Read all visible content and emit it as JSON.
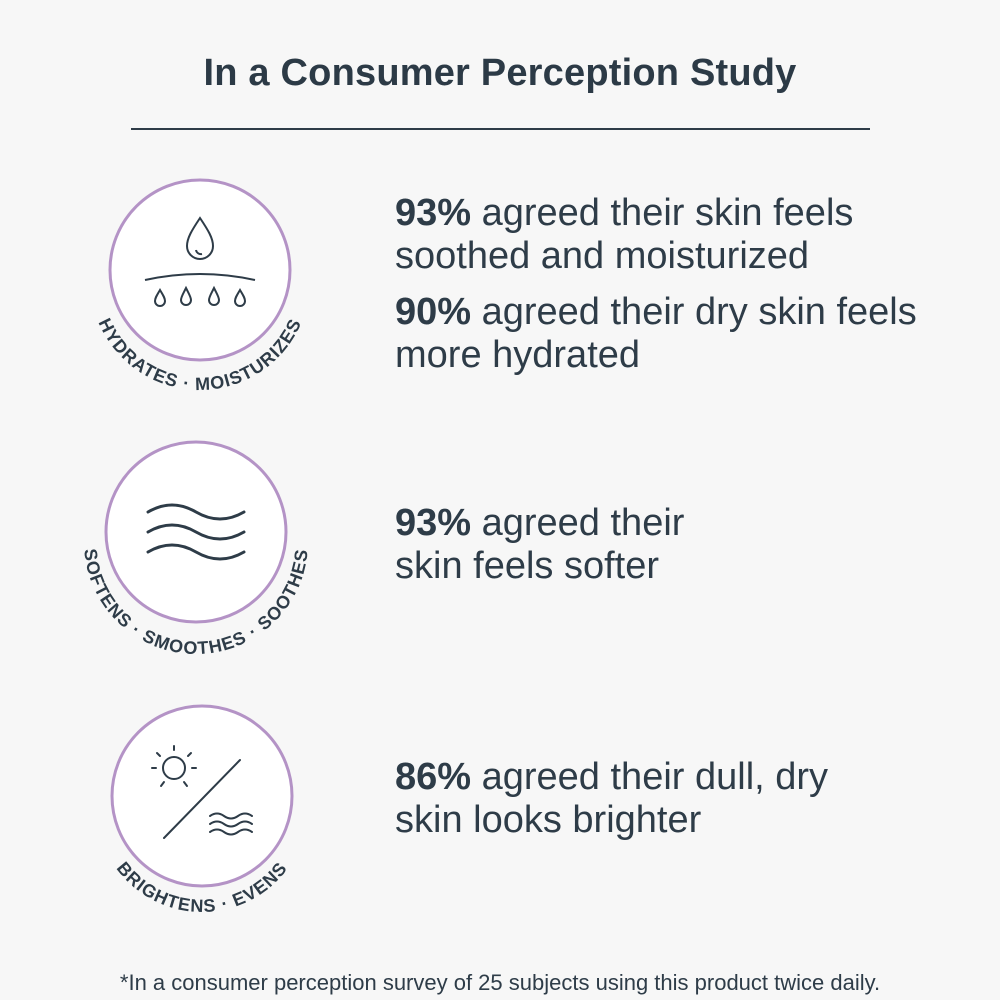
{
  "title": "In a Consumer Perception Study",
  "badges": [
    {
      "label": "HYDRATES · MOISTURIZES",
      "icon": "water-drops-icon"
    },
    {
      "label": "SOFTENS · SMOOTHES · SOOTHES",
      "icon": "waves-icon"
    },
    {
      "label": "BRIGHTENS · EVENS",
      "icon": "sun-slash-waves-icon"
    }
  ],
  "stats": [
    {
      "pct": "93%",
      "text": " agreed their skin feels soothed and moisturized"
    },
    {
      "pct": "90%",
      "text": " agreed their dry skin feels more hydrated"
    },
    {
      "pct": "93%",
      "text": " agreed their skin feels softer"
    },
    {
      "pct": "86%",
      "text": " agreed their dull, dry skin looks brighter"
    }
  ],
  "footnote": "*In a consumer perception survey of 25 subjects using this product twice daily.",
  "colors": {
    "ring": "#b493c6",
    "text": "#2e3c48",
    "background": "#f7f7f7"
  }
}
